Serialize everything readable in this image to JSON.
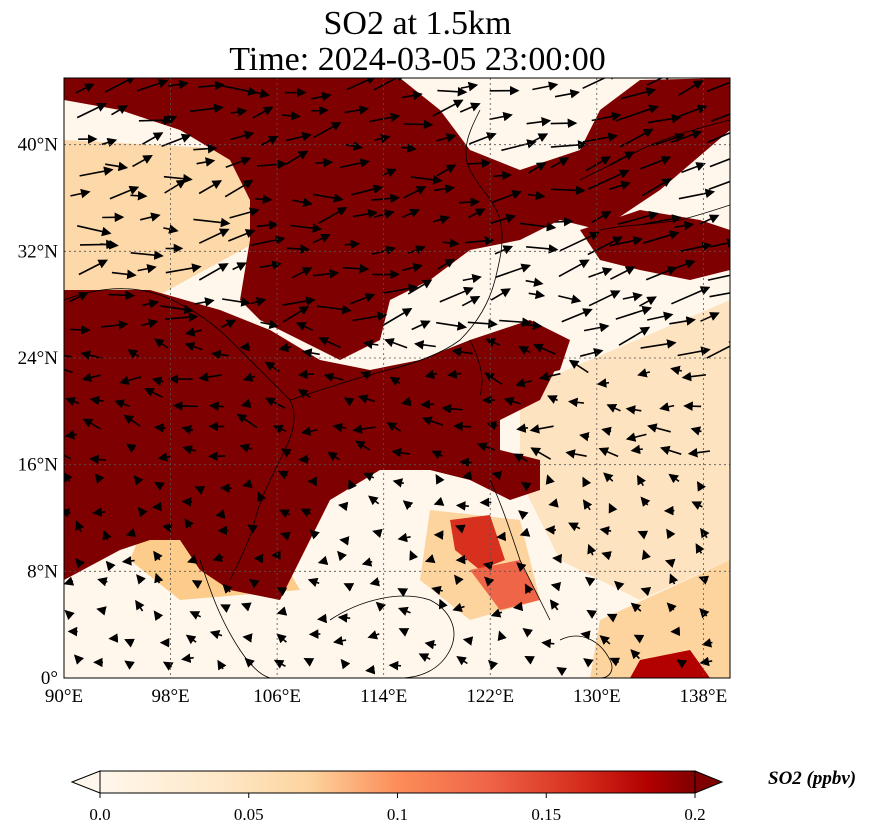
{
  "title_line1": "SO2 at 1.5km",
  "title_line2": "Time: 2024-03-05 23:00:00",
  "map": {
    "lon_range": [
      90,
      140
    ],
    "lat_range": [
      0,
      45
    ],
    "lon_ticks": [
      {
        "value": 90,
        "label": "90°E"
      },
      {
        "value": 98,
        "label": "98°E"
      },
      {
        "value": 106,
        "label": "106°E"
      },
      {
        "value": 114,
        "label": "114°E"
      },
      {
        "value": 122,
        "label": "122°E"
      },
      {
        "value": 130,
        "label": "130°E"
      },
      {
        "value": 138,
        "label": "138°E"
      }
    ],
    "lat_ticks": [
      {
        "value": 0,
        "label": "0°"
      },
      {
        "value": 8,
        "label": "8°N"
      },
      {
        "value": 16,
        "label": "16°N"
      },
      {
        "value": 24,
        "label": "24°N"
      },
      {
        "value": 32,
        "label": "32°N"
      },
      {
        "value": 40,
        "label": "40°N"
      }
    ],
    "gridlines": true,
    "colormap": "OrRd",
    "colors": {
      "high": "#7f0000",
      "mid": "#ef6548",
      "low": "#fdd49e",
      "zero": "#fff7ec"
    }
  },
  "colorbar": {
    "label": "SO2 (ppbv)",
    "range": [
      0.0,
      0.2
    ],
    "extend": "both",
    "ticks": [
      {
        "value": 0.0,
        "label": "0.0"
      },
      {
        "value": 0.05,
        "label": "0.05"
      },
      {
        "value": 0.1,
        "label": "0.1"
      },
      {
        "value": 0.15,
        "label": "0.15"
      },
      {
        "value": 0.2,
        "label": "0.2"
      }
    ]
  }
}
